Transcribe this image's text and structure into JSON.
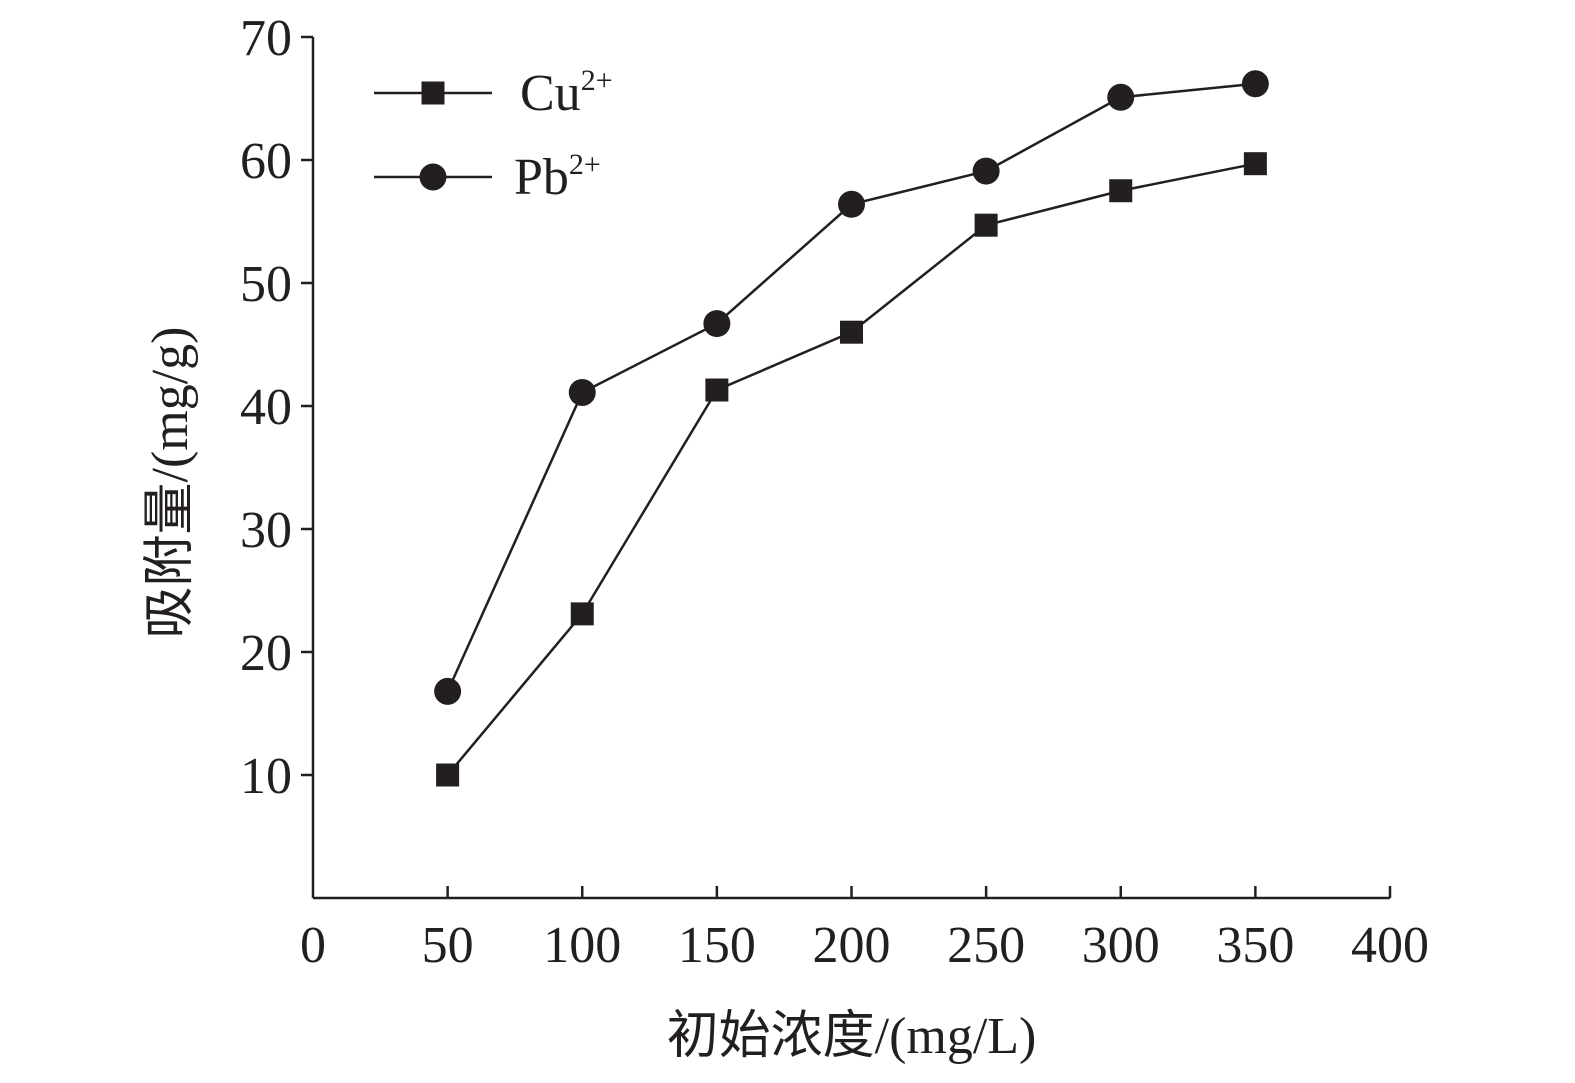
{
  "chart_data": {
    "type": "line",
    "title": "",
    "xlabel": "初始浓度/(mg/L)",
    "ylabel": "吸附量/(mg/g)",
    "xlim": [
      0,
      400
    ],
    "ylim": [
      0,
      70
    ],
    "x_ticks": [
      0,
      50,
      100,
      150,
      200,
      250,
      300,
      350,
      400
    ],
    "y_ticks": [
      10,
      20,
      30,
      40,
      50,
      60,
      70
    ],
    "grid": false,
    "legend_position": "top-left",
    "series": [
      {
        "name": "Cu",
        "name_superscript": "2+",
        "marker": "square",
        "color": "#231f20",
        "x": [
          50,
          100,
          150,
          200,
          250,
          300,
          350
        ],
        "y": [
          10.0,
          23.1,
          41.3,
          46.0,
          54.7,
          57.5,
          59.7
        ]
      },
      {
        "name": "Pb",
        "name_superscript": "2+",
        "marker": "circle",
        "color": "#231f20",
        "x": [
          50,
          100,
          150,
          200,
          250,
          300,
          350
        ],
        "y": [
          16.8,
          41.1,
          46.7,
          56.4,
          59.1,
          65.1,
          66.2
        ]
      }
    ]
  }
}
